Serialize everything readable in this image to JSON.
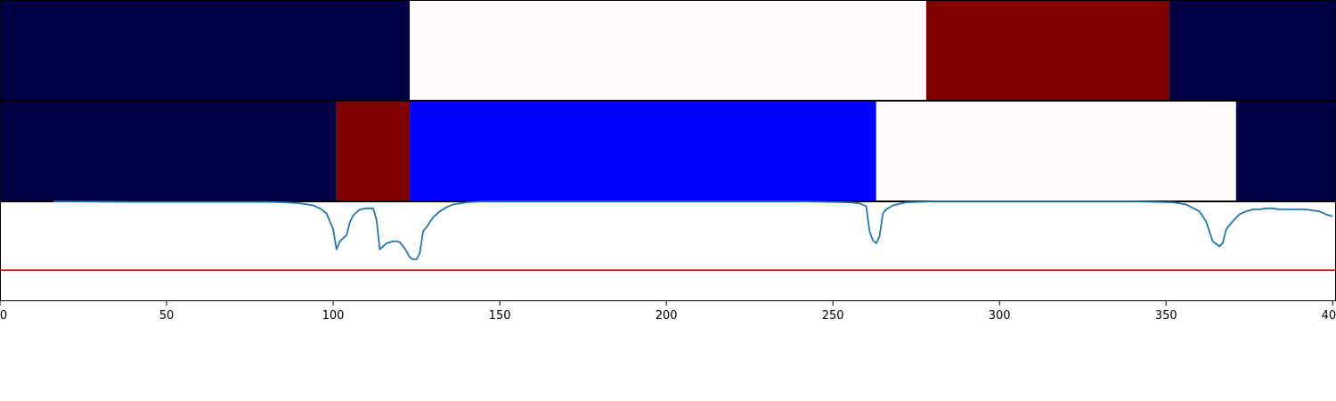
{
  "chart_data": [
    {
      "type": "heatmap",
      "row": "top",
      "segments": [
        {
          "start": 0,
          "end": 123,
          "color": "#000046"
        },
        {
          "start": 123,
          "end": 278,
          "color": "#fffbfb"
        },
        {
          "start": 278,
          "end": 351,
          "color": "#800000"
        },
        {
          "start": 351,
          "end": 401,
          "color": "#000046"
        }
      ]
    },
    {
      "type": "heatmap",
      "row": "middle",
      "segments": [
        {
          "start": 0,
          "end": 101,
          "color": "#000046"
        },
        {
          "start": 101,
          "end": 123,
          "color": "#800000"
        },
        {
          "start": 123,
          "end": 263,
          "color": "#0000ff"
        },
        {
          "start": 263,
          "end": 371,
          "color": "#fffbfb"
        },
        {
          "start": 371,
          "end": 401,
          "color": "#000046"
        }
      ]
    },
    {
      "type": "line",
      "row": "bottom",
      "xlim": [
        0,
        401
      ],
      "ylim": [
        0,
        1
      ],
      "threshold": 0.31,
      "threshold_color": "#e00000",
      "line_color": "#1f77b4",
      "series": [
        {
          "x": [
            16,
            40,
            60,
            80,
            86,
            90,
            94,
            96,
            98,
            100,
            101,
            102,
            104,
            105,
            106,
            108,
            110,
            112,
            113,
            114,
            116,
            118,
            119,
            120,
            121,
            122,
            123,
            124,
            125,
            126,
            127,
            128,
            130,
            132,
            134,
            136,
            140,
            145,
            160,
            180,
            200,
            220,
            240,
            255,
            258,
            260,
            261,
            262,
            263,
            264,
            265,
            266,
            268,
            272,
            280,
            300,
            320,
            340,
            352,
            356,
            360,
            362,
            364,
            366,
            367,
            368,
            369,
            370,
            372,
            374,
            376,
            378,
            380,
            382,
            384,
            386,
            388,
            390,
            392,
            394,
            396,
            398,
            400
          ],
          "y": [
            1.0,
            0.995,
            0.995,
            0.995,
            0.99,
            0.98,
            0.96,
            0.93,
            0.88,
            0.72,
            0.52,
            0.6,
            0.66,
            0.79,
            0.86,
            0.92,
            0.93,
            0.93,
            0.82,
            0.52,
            0.58,
            0.6,
            0.6,
            0.59,
            0.55,
            0.5,
            0.44,
            0.42,
            0.42,
            0.48,
            0.7,
            0.74,
            0.84,
            0.9,
            0.94,
            0.97,
            0.99,
            1.0,
            1.0,
            1.0,
            1.0,
            1.0,
            1.0,
            0.99,
            0.98,
            0.95,
            0.7,
            0.61,
            0.58,
            0.65,
            0.88,
            0.92,
            0.96,
            0.99,
            1.0,
            1.0,
            1.0,
            1.0,
            0.99,
            0.97,
            0.9,
            0.8,
            0.6,
            0.55,
            0.58,
            0.72,
            0.76,
            0.8,
            0.87,
            0.9,
            0.92,
            0.92,
            0.93,
            0.93,
            0.92,
            0.92,
            0.92,
            0.92,
            0.92,
            0.91,
            0.9,
            0.87,
            0.85
          ]
        }
      ]
    }
  ],
  "axis": {
    "xticks": [
      "0",
      "50",
      "100",
      "150",
      "200",
      "250",
      "300",
      "350",
      "400"
    ]
  }
}
